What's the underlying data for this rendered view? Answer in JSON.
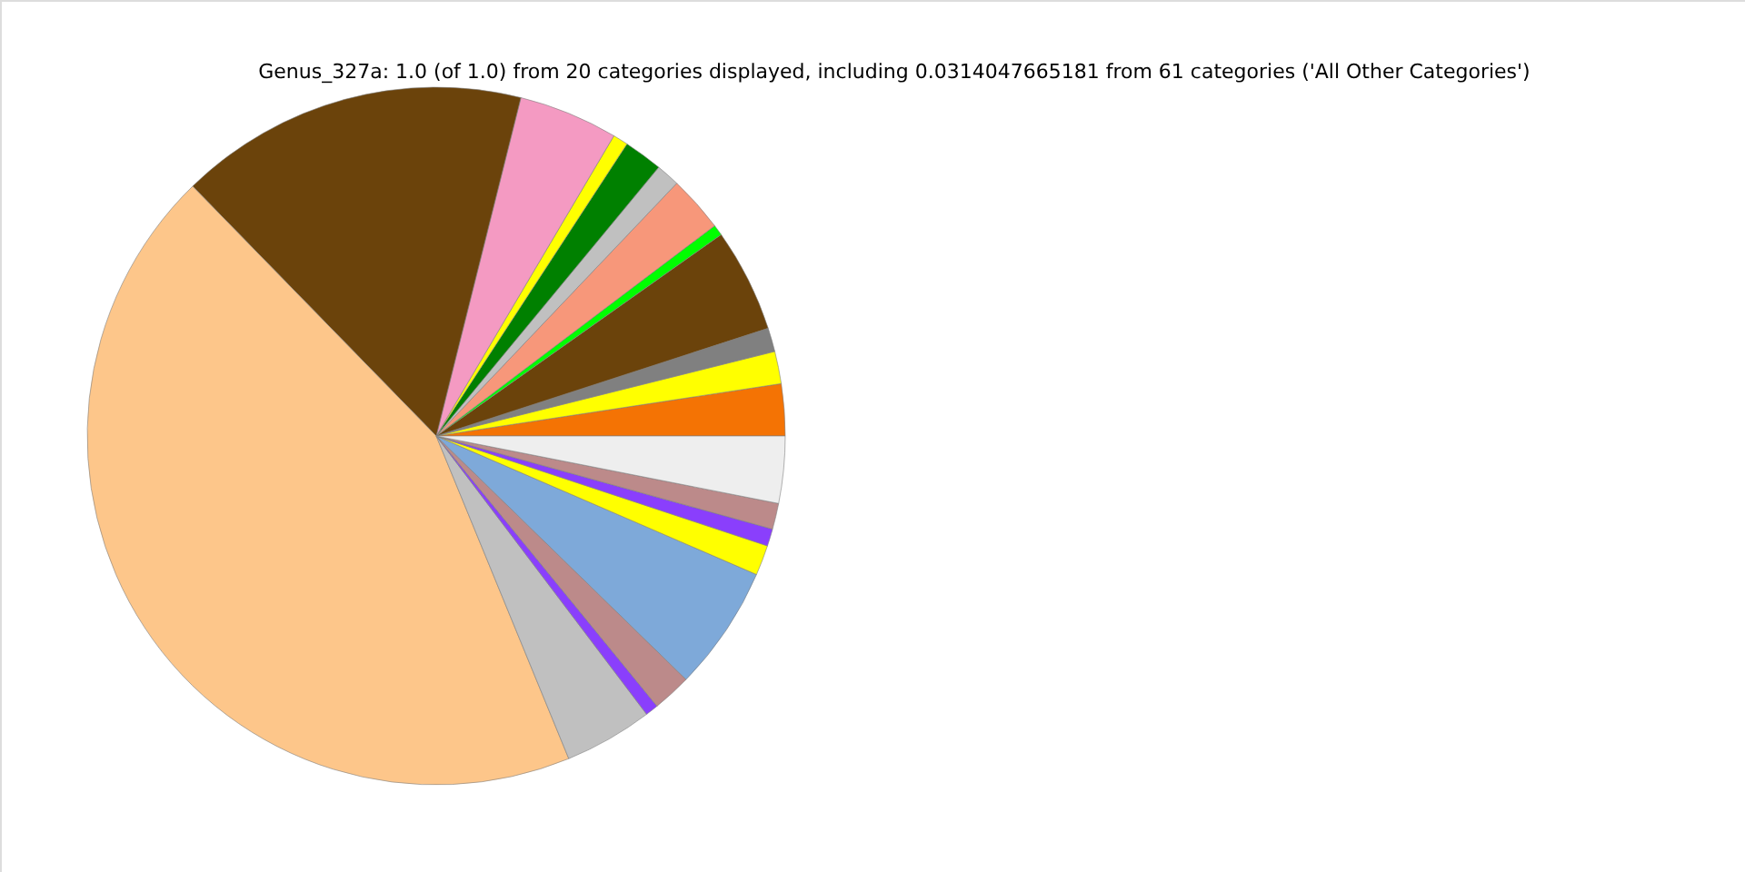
{
  "chart_data": {
    "type": "pie",
    "title": "Genus_327a: 1.0 (of 1.0) from 20 categories displayed, including 0.0314047665181 from 61 categories ('All Other Categories')",
    "categories": [
      null,
      null,
      null,
      null,
      null,
      null,
      null,
      null,
      null,
      null,
      null,
      null,
      null,
      null,
      null,
      null,
      null,
      null,
      null,
      null
    ],
    "values": [
      2.4,
      1.5,
      1.1,
      4.8,
      0.5,
      2.6,
      1.1,
      1.8,
      0.7,
      4.6,
      16.2,
      43.9,
      4.1,
      0.6,
      1.8,
      5.8,
      1.4,
      0.8,
      1.2,
      3.1
    ],
    "colors": [
      "#f47304",
      "#ffff00",
      "#808080",
      "#6b430b",
      "#00ff00",
      "#f7977a",
      "#c0c0c0",
      "#008000",
      "#ffff00",
      "#f49ac2",
      "#6b430b",
      "#fdc68a",
      "#c0c0c0",
      "#8a3ffc",
      "#bc8a8a",
      "#7ea9d9",
      "#ffff00",
      "#8a3ffc",
      "#bc8a8a",
      "#eeeeee"
    ]
  }
}
